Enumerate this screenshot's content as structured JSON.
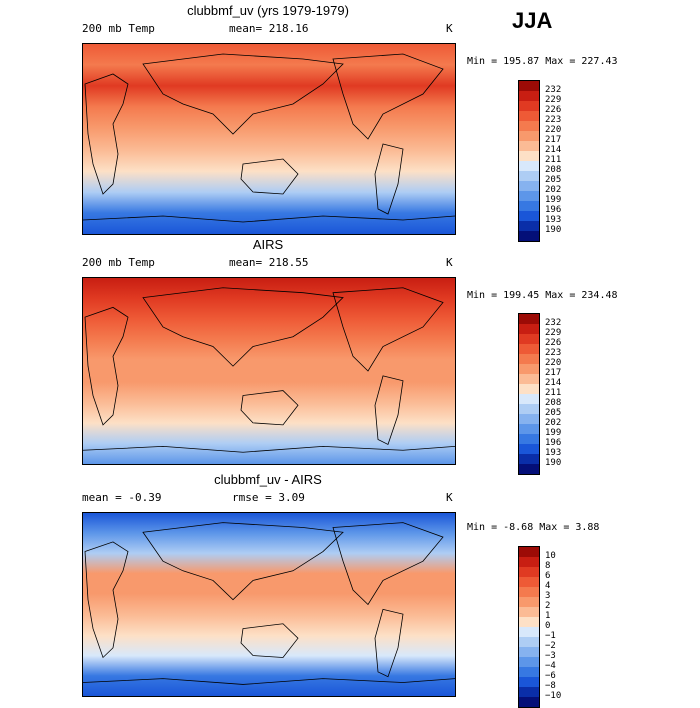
{
  "season": "JJA",
  "palette": {
    "warm_temp": [
      "#fde0cc",
      "#fbc3a0",
      "#f8a37a",
      "#f2845a",
      "#ec6640",
      "#e44a2a",
      "#d8301c",
      "#b81a10",
      "#8c0a06"
    ],
    "cool_temp": [
      "#d6e7fb",
      "#aacbf4",
      "#7eaeee",
      "#5591e8",
      "#2f74e0",
      "#1558d8",
      "#0c3cc4",
      "#061f9e",
      "#020a6e"
    ],
    "tan": "#fce6cf",
    "white": "#ffffff"
  },
  "panels": [
    {
      "title": "clubbmf_uv (yrs 1979-1979)",
      "left_text": "200 mb Temp",
      "center_text": "mean= 218.16",
      "unit": "K",
      "minmax": "Min = 195.87 Max = 227.43",
      "colorbar_labels": [
        "232",
        "229",
        "226",
        "223",
        "220",
        "217",
        "214",
        "211",
        "208",
        "205",
        "202",
        "199",
        "196",
        "193",
        "190"
      ],
      "colorbar_colors": [
        "#9c0b06",
        "#c81e12",
        "#e03a22",
        "#ee5a36",
        "#f47a4e",
        "#f8996c",
        "#fbbb95",
        "#fde0c6",
        "#d8e8fb",
        "#aecdf4",
        "#86b2ef",
        "#5d96e9",
        "#3778e2",
        "#1a56d8",
        "#0a2ea8",
        "#040f78"
      ],
      "bands": [
        "#ee5a36",
        "#f47a4e",
        "#e03a22",
        "#f47a4e",
        "#f8996c",
        "#fbbb95",
        "#fde0c6",
        "#aecdf4",
        "#3778e2",
        "#1a56d8"
      ]
    },
    {
      "title": "AIRS",
      "left_text": "200 mb Temp",
      "center_text": "mean= 218.55",
      "unit": "K",
      "minmax": "Min = 199.45 Max = 234.48",
      "colorbar_labels": [
        "232",
        "229",
        "226",
        "223",
        "220",
        "217",
        "214",
        "211",
        "208",
        "205",
        "202",
        "199",
        "196",
        "193",
        "190"
      ],
      "colorbar_colors": [
        "#9c0b06",
        "#c81e12",
        "#e03a22",
        "#ee5a36",
        "#f47a4e",
        "#f8996c",
        "#fbbb95",
        "#fde0c6",
        "#d8e8fb",
        "#aecdf4",
        "#86b2ef",
        "#5d96e9",
        "#3778e2",
        "#1a56d8",
        "#0a2ea8",
        "#040f78"
      ],
      "bands": [
        "#c81e12",
        "#e03a22",
        "#ee5a36",
        "#f47a4e",
        "#f8996c",
        "#f8996c",
        "#fbbb95",
        "#fde0c6",
        "#aecdf4",
        "#5d96e9"
      ]
    },
    {
      "title": "clubbmf_uv - AIRS",
      "left_text": "mean =  -0.39",
      "center_text": "rmse =   3.09",
      "unit": "K",
      "minmax": "Min =  -8.68 Max =   3.88",
      "colorbar_labels": [
        "10",
        "8",
        "6",
        "4",
        "3",
        "2",
        "1",
        "0",
        "−1",
        "−2",
        "−3",
        "−4",
        "−6",
        "−8",
        "−10"
      ],
      "colorbar_colors": [
        "#9c0b06",
        "#c81e12",
        "#e03a22",
        "#ee5a36",
        "#f47a4e",
        "#f8996c",
        "#fbbb95",
        "#fde0c6",
        "#d8e8fb",
        "#aecdf4",
        "#86b2ef",
        "#5d96e9",
        "#3778e2",
        "#1a56d8",
        "#0a2ea8",
        "#040f78"
      ],
      "bands": [
        "#1a56d8",
        "#5d96e9",
        "#aecdf4",
        "#f8996c",
        "#f8996c",
        "#fbbb95",
        "#fde0c6",
        "#d8e8fb",
        "#3778e2",
        "#1a56d8"
      ]
    }
  ]
}
